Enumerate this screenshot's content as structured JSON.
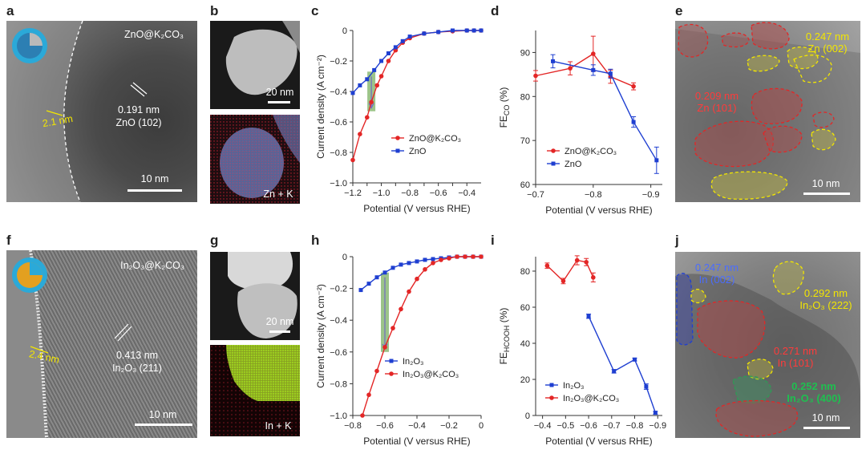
{
  "panels": {
    "a": {
      "letter": "a",
      "title": "ZnO@K₂CO₃",
      "d_value": "0.191 nm",
      "plane": "ZnO (102)",
      "shell": "2.1 nm",
      "scale": "10 nm"
    },
    "b": {
      "letter": "b",
      "scale": "20 nm",
      "eds": "Zn + K"
    },
    "e": {
      "letter": "e",
      "label1_d": "0.247 nm",
      "label1_p": "Zn (002)",
      "label2_d": "0.209 nm",
      "label2_p": "Zn (101)",
      "scale": "10 nm"
    },
    "f": {
      "letter": "f",
      "title": "In₂O₃@K₂CO₃",
      "d_value": "0.413 nm",
      "plane": "In₂O₃ (211)",
      "shell": "2.4 nm",
      "scale": "10 nm"
    },
    "g": {
      "letter": "g",
      "scale": "20 nm",
      "eds": "In + K"
    },
    "j": {
      "letter": "j",
      "label1_d": "0.247 nm",
      "label1_p": "In (002)",
      "label2_d": "0.292 nm",
      "label2_p": "In₂O₃ (222)",
      "label3_d": "0.271 nm",
      "label3_p": "In (101)",
      "label4_d": "0.252 nm",
      "label4_p": "In₂O₃ (400)",
      "scale": "10 nm"
    }
  },
  "colors": {
    "red": "#e32626",
    "blue": "#1f3fd1",
    "green_band": "#7bb062",
    "yellow": "#f2e600"
  },
  "chart_data": [
    {
      "id": "c",
      "letter": "c",
      "type": "line",
      "xlabel": "Potential (V versus RHE)",
      "ylabel": "Current density (A cm⁻²)",
      "xlim": [
        -1.2,
        -0.3
      ],
      "ylim": [
        -1.0,
        0.0
      ],
      "xticks": [
        -1.2,
        -1.1,
        -1.0,
        -0.9,
        -0.8,
        -0.7,
        -0.6,
        -0.5,
        -0.4
      ],
      "xticklabels": [
        "−1.2",
        "",
        "−1.0",
        "",
        "−0.8",
        "",
        "−0.6",
        "",
        "−0.4"
      ],
      "yticks": [
        0,
        -0.2,
        -0.4,
        -0.6,
        -0.8,
        -1.0
      ],
      "yticklabels": [
        "0",
        "−0.2",
        "−0.4",
        "−0.6",
        "−0.8",
        "−1.0"
      ],
      "legend": [
        "ZnO@K₂CO₃",
        "ZnO"
      ],
      "series": [
        {
          "name": "ZnO@K₂CO₃",
          "color": "#e32626",
          "x": [
            -1.2,
            -1.15,
            -1.1,
            -1.07,
            -1.03,
            -1.0,
            -0.95,
            -0.9,
            -0.85,
            -0.8,
            -0.7,
            -0.6,
            -0.5,
            -0.4,
            -0.35,
            -0.3
          ],
          "y": [
            -0.85,
            -0.68,
            -0.57,
            -0.47,
            -0.36,
            -0.3,
            -0.2,
            -0.13,
            -0.08,
            -0.05,
            -0.02,
            -0.01,
            -0.005,
            0,
            0,
            0
          ]
        },
        {
          "name": "ZnO",
          "color": "#1f3fd1",
          "x": [
            -1.2,
            -1.15,
            -1.1,
            -1.05,
            -1.0,
            -0.95,
            -0.9,
            -0.85,
            -0.8,
            -0.7,
            -0.6,
            -0.5,
            -0.4,
            -0.35,
            -0.3
          ],
          "y": [
            -0.41,
            -0.36,
            -0.32,
            -0.26,
            -0.2,
            -0.15,
            -0.11,
            -0.07,
            -0.04,
            -0.02,
            -0.01,
            0,
            0,
            0,
            0
          ]
        }
      ],
      "band": {
        "x": -1.07,
        "y_top": -0.27,
        "y_bottom": -0.53
      }
    },
    {
      "id": "d",
      "letter": "d",
      "type": "line",
      "xlabel": "Potential (V versus RHE)",
      "ylabel": "FE_CO (%)",
      "xlim": [
        -0.7,
        -0.92
      ],
      "ylim": [
        60,
        95
      ],
      "xticks": [
        -0.7,
        -0.8,
        -0.9
      ],
      "xticklabels": [
        "−0.7",
        "−0.8",
        "−0.9"
      ],
      "yticks": [
        60,
        70,
        80,
        90
      ],
      "yticklabels": [
        "60",
        "70",
        "80",
        "90"
      ],
      "legend": [
        "ZnO@K₂CO₃",
        "ZnO"
      ],
      "series": [
        {
          "name": "ZnO@K₂CO₃",
          "color": "#e32626",
          "x": [
            -0.7,
            -0.76,
            -0.8,
            -0.83,
            -0.87
          ],
          "y": [
            84.7,
            86.4,
            89.7,
            84.5,
            82.3
          ],
          "err": [
            1.2,
            1.5,
            4.0,
            1.5,
            0.8
          ]
        },
        {
          "name": "ZnO",
          "color": "#1f3fd1",
          "x": [
            -0.73,
            -0.8,
            -0.83,
            -0.87,
            -0.91
          ],
          "y": [
            88.0,
            86.0,
            85.2,
            74.2,
            65.5
          ],
          "err": [
            1.5,
            1.2,
            1.0,
            1.2,
            3.0
          ]
        }
      ]
    },
    {
      "id": "h",
      "letter": "h",
      "type": "line",
      "xlabel": "Potential (V versus RHE)",
      "ylabel": "Current density (A cm⁻²)",
      "xlim": [
        -0.8,
        0.0
      ],
      "ylim": [
        -1.0,
        0.0
      ],
      "xticks": [
        -0.8,
        -0.6,
        -0.4,
        -0.2,
        0
      ],
      "xticklabels": [
        "−0.8",
        "−0.6",
        "−0.4",
        "−0.2",
        "0"
      ],
      "yticks": [
        0,
        -0.2,
        -0.4,
        -0.6,
        -0.8,
        -1.0
      ],
      "yticklabels": [
        "0",
        "−0.2",
        "−0.4",
        "−0.6",
        "−0.8",
        "−1.0"
      ],
      "legend": [
        "In₂O₃",
        "In₂O₃@K₂CO₃"
      ],
      "series": [
        {
          "name": "In₂O₃",
          "color": "#1f3fd1",
          "x": [
            -0.75,
            -0.7,
            -0.65,
            -0.6,
            -0.55,
            -0.5,
            -0.45,
            -0.4,
            -0.35,
            -0.3,
            -0.25,
            -0.2,
            -0.15,
            -0.1,
            -0.05,
            0
          ],
          "y": [
            -0.21,
            -0.17,
            -0.13,
            -0.1,
            -0.07,
            -0.05,
            -0.04,
            -0.03,
            -0.02,
            -0.015,
            -0.01,
            -0.005,
            0,
            0,
            0,
            0
          ]
        },
        {
          "name": "In₂O₃@K₂CO₃",
          "color": "#e32626",
          "x": [
            -0.74,
            -0.7,
            -0.65,
            -0.6,
            -0.55,
            -0.5,
            -0.45,
            -0.4,
            -0.35,
            -0.3,
            -0.25,
            -0.2,
            -0.15,
            -0.1,
            -0.05,
            0
          ],
          "y": [
            -1.0,
            -0.87,
            -0.72,
            -0.57,
            -0.45,
            -0.33,
            -0.22,
            -0.14,
            -0.08,
            -0.04,
            -0.02,
            -0.01,
            0,
            0,
            0,
            0
          ]
        }
      ],
      "band": {
        "x": -0.6,
        "y_top": -0.1,
        "y_bottom": -0.6
      }
    },
    {
      "id": "i",
      "letter": "i",
      "type": "line",
      "xlabel": "Potential (V versus RHE)",
      "ylabel": "FE_HCOOH (%)",
      "xlim": [
        -0.37,
        -0.92
      ],
      "ylim": [
        0,
        88
      ],
      "xticks": [
        -0.4,
        -0.5,
        -0.6,
        -0.7,
        -0.8,
        -0.9
      ],
      "xticklabels": [
        "−0.4",
        "−0.5",
        "−0.6",
        "−0.7",
        "−0.8",
        "−0.9"
      ],
      "yticks": [
        0,
        20,
        40,
        60,
        80
      ],
      "yticklabels": [
        "0",
        "20",
        "40",
        "60",
        "80"
      ],
      "legend": [
        "In₂O₃",
        "In₂O₃@K₂CO₃"
      ],
      "series": [
        {
          "name": "In₂O₃",
          "color": "#1f3fd1",
          "x": [
            -0.6,
            -0.71,
            -0.8,
            -0.85,
            -0.89
          ],
          "y": [
            55,
            24.5,
            31,
            16,
            1.5
          ],
          "err": [
            1.2,
            1,
            0.8,
            1.5,
            0.8
          ]
        },
        {
          "name": "In₂O₃@K₂CO₃",
          "color": "#e32626",
          "x": [
            -0.42,
            -0.49,
            -0.55,
            -0.59,
            -0.62
          ],
          "y": [
            83,
            74.5,
            86,
            85,
            76.5
          ],
          "err": [
            1.5,
            1.5,
            2.5,
            2,
            2.5
          ]
        }
      ]
    }
  ]
}
